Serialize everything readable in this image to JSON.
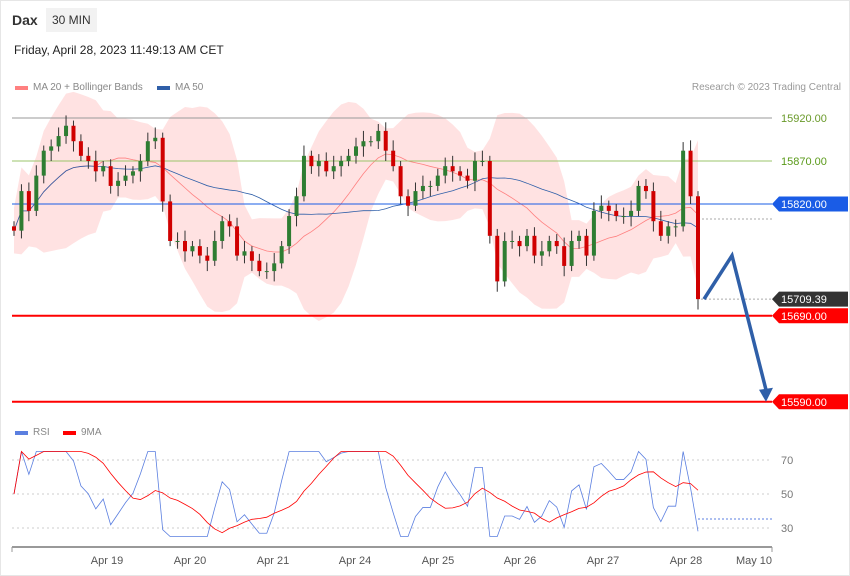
{
  "header": {
    "title": "Dax",
    "timeframe": "30 MIN",
    "datetime": "Friday, April 28, 2023 11:49:13 AM CET"
  },
  "legend": {
    "ma20": "MA 20 + Bollinger Bands",
    "ma50": "MA 50",
    "rsi": "RSI",
    "ma9": "9MA",
    "copyright": "Research © 2023 Trading Central"
  },
  "colors": {
    "up": "#2e7d32",
    "down": "#d00000",
    "bands": "#ffd6d6",
    "ma50": "#2f5fa8",
    "ma20": "#ff8080",
    "rsi": "#5b7fe0",
    "rsi_ma": "#ff0000",
    "arrow": "#2f5fa8"
  },
  "chart_data": {
    "type": "candlestick",
    "closes": [
      15789,
      15835,
      15812,
      15853,
      15882,
      15887,
      15899,
      15911,
      15893,
      15876,
      15870,
      15858,
      15864,
      15841,
      15847,
      15853,
      15858,
      15870,
      15893,
      15897,
      15823,
      15777,
      15777,
      15765,
      15771,
      15760,
      15754,
      15777,
      15800,
      15794,
      15760,
      15765,
      15754,
      15742,
      15742,
      15751,
      15771,
      15806,
      15829,
      15876,
      15864,
      15870,
      15858,
      15864,
      15870,
      15876,
      15887,
      15893,
      15893,
      15905,
      15882,
      15864,
      15829,
      15818,
      15835,
      15841,
      15841,
      15853,
      15864,
      15858,
      15853,
      15847,
      15870,
      15870,
      15783,
      15730,
      15777,
      15777,
      15771,
      15783,
      15760,
      15765,
      15777,
      15771,
      15748,
      15777,
      15783,
      15760,
      15812,
      15818,
      15812,
      15806,
      15806,
      15812,
      15841,
      15835,
      15800,
      15783,
      15794,
      15794,
      15882,
      15829,
      15709.39
    ],
    "x_ticks": [
      "Apr 19",
      "Apr 20",
      "Apr 21",
      "Apr 24",
      "Apr 25",
      "Apr 26",
      "Apr 27",
      "Apr 28",
      "May 10"
    ],
    "levels": [
      {
        "value": 15920.0,
        "label": "15920.00",
        "color": "#999999",
        "kind": "gray"
      },
      {
        "value": 15870.0,
        "label": "15870.00",
        "color": "#9bc46b",
        "kind": "green"
      },
      {
        "value": 15820.0,
        "label": "15820.00",
        "color": "#1a5ce6",
        "kind": "pivot"
      },
      {
        "value": 15709.39,
        "label": "15709.39",
        "color": "#333333",
        "kind": "last"
      },
      {
        "value": 15690.0,
        "label": "15690.00",
        "color": "#ff0000",
        "kind": "support"
      },
      {
        "value": 15590.0,
        "label": "15590.00",
        "color": "#ff0000",
        "kind": "support"
      }
    ],
    "forecast_path": [
      15709.39,
      15760,
      15590
    ],
    "rsi_ticks": [
      "70",
      "50",
      "30"
    ]
  }
}
